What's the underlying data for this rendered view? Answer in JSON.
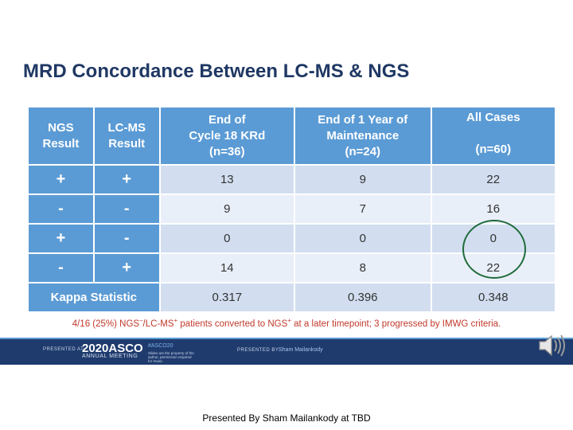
{
  "title": "MRD Concordance Between LC-MS & NGS",
  "table": {
    "headers": {
      "ngs": [
        "NGS",
        "Result"
      ],
      "lcms": [
        "LC-MS",
        "Result"
      ],
      "cycle18": [
        "End of",
        "Cycle 18 KRd",
        "(n=36)"
      ],
      "year1": [
        "End of 1 Year of",
        "Maintenance",
        "(n=24)"
      ],
      "all": [
        "All Cases",
        "",
        "(n=60)"
      ]
    },
    "rows": [
      {
        "ngs": "+",
        "lcms": "+",
        "cycle18": "13",
        "year1": "9",
        "all": "22"
      },
      {
        "ngs": "-",
        "lcms": "-",
        "cycle18": "9",
        "year1": "7",
        "all": "16"
      },
      {
        "ngs": "+",
        "lcms": "-",
        "cycle18": "0",
        "year1": "0",
        "all": "0"
      },
      {
        "ngs": "-",
        "lcms": "+",
        "cycle18": "14",
        "year1": "8",
        "all": "22"
      }
    ],
    "kappa": {
      "label": "Kappa Statistic",
      "cycle18": "0.317",
      "year1": "0.396",
      "all": "0.348"
    }
  },
  "footnote": {
    "p1": "4/16 (25%) NGS",
    "s1": "–",
    "p2": "/LC-MS",
    "s2": "+",
    "p3": " patients converted to NGS",
    "s3": "+",
    "p4": " at a later timepoint; 3 progressed by IMWG criteria."
  },
  "banner": {
    "presented_at": "PRESENTED AT:",
    "asco": "2020ASCO",
    "annual": "ANNUAL MEETING",
    "hashtag": "#ASCO20",
    "slides_note": "Slides are the property of the author, permission required for reuse.",
    "presented_by": "PRESENTED BY:",
    "presenter": "Sham Mailankody"
  },
  "bottom_caption": "Presented By Sham Mailankody at TBD",
  "colors": {
    "title": "#1f3864",
    "header": "#5b9bd5",
    "row_dark": "#d2def0",
    "row_light": "#e9eff8",
    "footnote": "#c0392b",
    "banner": "#1f3b6e",
    "circle": "#1e6b3a"
  },
  "icons": {
    "audio": "speaker-icon"
  }
}
